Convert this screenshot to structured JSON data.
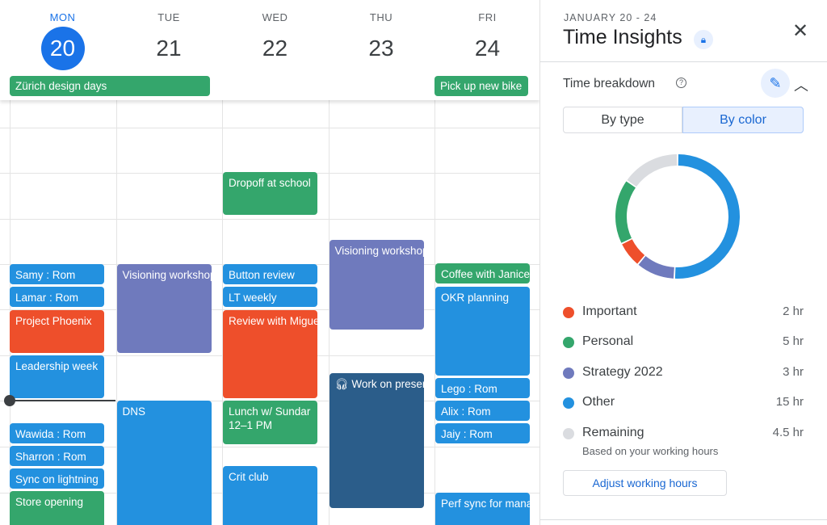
{
  "calendar": {
    "days": [
      {
        "dow": "MON",
        "num": "20",
        "today": true
      },
      {
        "dow": "TUE",
        "num": "21"
      },
      {
        "dow": "WED",
        "num": "22"
      },
      {
        "dow": "THU",
        "num": "23"
      },
      {
        "dow": "FRI",
        "num": "24"
      }
    ],
    "all_day": [
      {
        "title": "Zürich design days",
        "color": "green"
      },
      {
        "title": "Pick up new bike",
        "color": "green"
      }
    ],
    "events": [
      {
        "title": "Samy : Rom",
        "color": "blue"
      },
      {
        "title": "Lamar : Rom",
        "color": "blue"
      },
      {
        "title": "Project Phoenix",
        "color": "red"
      },
      {
        "title": "Leadership week",
        "color": "blue"
      },
      {
        "title": "Wawida : Rom",
        "color": "blue"
      },
      {
        "title": "Sharron : Rom",
        "color": "blue"
      },
      {
        "title": "Sync on lightning",
        "color": "blue"
      },
      {
        "title": "Store opening",
        "color": "green"
      },
      {
        "title": "Visioning workshop",
        "color": "purple"
      },
      {
        "title": "DNS",
        "color": "blue"
      },
      {
        "title": "Dropoff at school",
        "color": "green"
      },
      {
        "title": "Button review",
        "color": "blue"
      },
      {
        "title": "LT weekly",
        "color": "blue"
      },
      {
        "title": "Review with Miguel",
        "color": "red"
      },
      {
        "title": "Lunch w/ Sundar",
        "time": "12–1 PM",
        "color": "green"
      },
      {
        "title": "Crit club",
        "color": "blue"
      },
      {
        "title": "Visioning workshop",
        "color": "purple"
      },
      {
        "title": "Work on presentation",
        "color": "dark",
        "icon": "headphones-icon"
      },
      {
        "title": "Coffee with Janice",
        "color": "green"
      },
      {
        "title": "OKR planning",
        "color": "blue"
      },
      {
        "title": "Lego : Rom",
        "color": "blue"
      },
      {
        "title": "Alix : Rom",
        "color": "blue"
      },
      {
        "title": "Jaiy : Rom",
        "color": "blue"
      },
      {
        "title": "Perf sync for managers",
        "color": "blue"
      }
    ]
  },
  "colors": {
    "blue": "#2391df",
    "red": "#ee4f2b",
    "green": "#34a66c",
    "purple": "#6f7abd",
    "dark": "#2b5d8a",
    "grey": "#dadce0"
  },
  "panel": {
    "range": "JANUARY 20 - 24",
    "title": "Time Insights",
    "section": "Time breakdown",
    "tabs": [
      "By type",
      "By color"
    ],
    "active_tab": "By color",
    "legend": [
      {
        "label": "Important",
        "value": "2 hr",
        "hours": 2,
        "color": "#ee4f2b"
      },
      {
        "label": "Personal",
        "value": "5 hr",
        "hours": 5,
        "color": "#34a66c"
      },
      {
        "label": "Strategy 2022",
        "value": "3 hr",
        "hours": 3,
        "color": "#6f7abd"
      },
      {
        "label": "Other",
        "value": "15 hr",
        "hours": 15,
        "color": "#2391df"
      },
      {
        "label": "Remaining",
        "value": "4.5 hr",
        "hours": 4.5,
        "color": "#dadce0"
      }
    ],
    "remaining_note": "Based on your working hours",
    "adjust_button": "Adjust working hours"
  }
}
